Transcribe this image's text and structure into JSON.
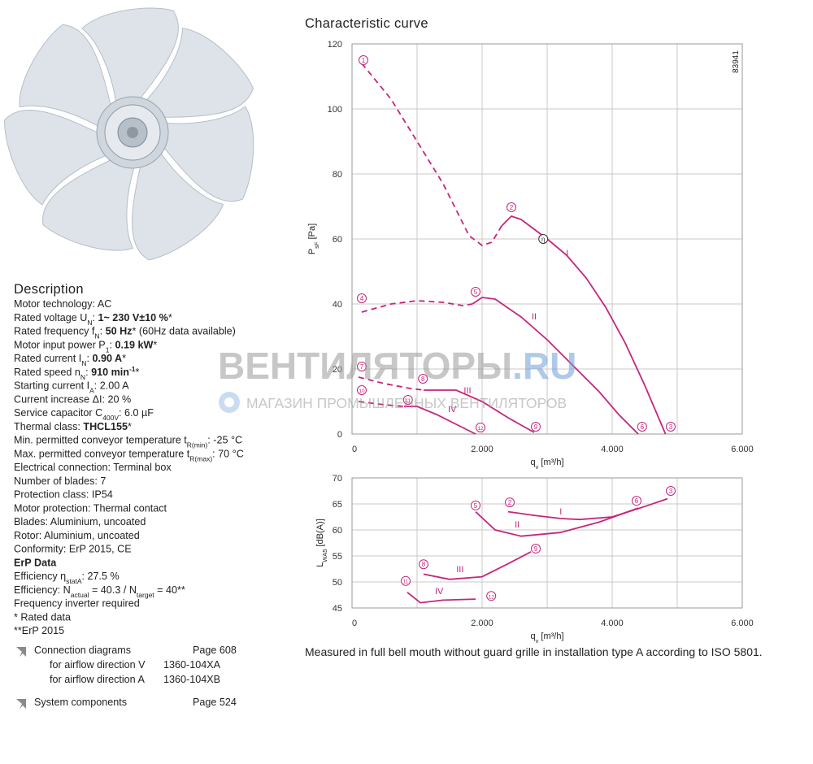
{
  "description": {
    "title": "Description",
    "lines": [
      [
        {
          "t": "Motor technology: AC"
        }
      ],
      [
        {
          "t": "Rated voltage U"
        },
        {
          "sub": "N"
        },
        {
          "t": ": "
        },
        {
          "b": "1~ 230 V±10 %"
        },
        {
          "t": "*"
        }
      ],
      [
        {
          "t": "Rated frequency f"
        },
        {
          "sub": "N"
        },
        {
          "t": ": "
        },
        {
          "b": "50 Hz"
        },
        {
          "t": "* (60Hz data available)"
        }
      ],
      [
        {
          "t": "Motor input power P"
        },
        {
          "sub": "1"
        },
        {
          "t": ": "
        },
        {
          "b": "0.19 kW"
        },
        {
          "t": "*"
        }
      ],
      [
        {
          "t": "Rated current I"
        },
        {
          "sub": "N"
        },
        {
          "t": ": "
        },
        {
          "b": "0.90 A"
        },
        {
          "t": "*"
        }
      ],
      [
        {
          "t": "Rated speed n"
        },
        {
          "sub": "N"
        },
        {
          "t": ": "
        },
        {
          "b": "910 min"
        },
        {
          "sup": "-1"
        },
        {
          "t": "*"
        }
      ],
      [
        {
          "t": "Starting current I"
        },
        {
          "sub": "A"
        },
        {
          "t": ": 2.00 A"
        }
      ],
      [
        {
          "t": "Current increase ΔI: 20 %"
        }
      ],
      [
        {
          "t": "Service capacitor C"
        },
        {
          "sub": "400V"
        },
        {
          "t": ": 6.0 µF"
        }
      ],
      [
        {
          "t": "Thermal class: "
        },
        {
          "b": "THCL155"
        },
        {
          "t": "*"
        }
      ],
      [
        {
          "t": "Min. permitted conveyor temperature t"
        },
        {
          "sub": "R(min)"
        },
        {
          "t": ": -25 °C"
        }
      ],
      [
        {
          "t": "Max. permitted conveyor temperature t"
        },
        {
          "sub": "R(max)"
        },
        {
          "t": ": 70 °C"
        }
      ],
      [
        {
          "t": "Electrical connection: Terminal box"
        }
      ],
      [
        {
          "t": "Number of blades: 7"
        }
      ],
      [
        {
          "t": "Protection class: IP54"
        }
      ],
      [
        {
          "t": "Motor protection: Thermal contact"
        }
      ],
      [
        {
          "t": "Blades: Aluminium, uncoated"
        }
      ],
      [
        {
          "t": "Rotor: Aluminium, uncoated"
        }
      ],
      [
        {
          "t": "Conformity: ErP 2015, CE"
        }
      ],
      [
        {
          "b": "ErP Data"
        }
      ],
      [
        {
          "t": "Efficiency η"
        },
        {
          "sub": "statA"
        },
        {
          "t": ": 27.5 %"
        }
      ],
      [
        {
          "t": "Efficiency: N"
        },
        {
          "sub": "actual"
        },
        {
          "t": " = 40.3 / N"
        },
        {
          "sub": "target"
        },
        {
          "t": " = 40**"
        }
      ],
      [
        {
          "t": "Frequency inverter required"
        }
      ],
      [
        {
          "t": "* Rated data"
        }
      ],
      [
        {
          "t": "**ErP 2015"
        }
      ]
    ]
  },
  "links": [
    {
      "label": "Connection diagrams",
      "page": "Page 608",
      "items": [
        {
          "label": "for airflow direction V",
          "code": "1360-104XA"
        },
        {
          "label": "for airflow direction A",
          "code": "1360-104XB"
        }
      ]
    },
    {
      "label": "System components",
      "page": "Page 524",
      "items": []
    }
  ],
  "heading": "Characteristic curve",
  "watermark": {
    "brand": "ВЕНТИЛЯТОРЫ",
    "domain": ".RU",
    "tagline": "МАГАЗИН ПРОМЫШЛЕННЫХ ВЕНТИЛЯТОРОВ"
  },
  "note": "Measured in full bell mouth without guard grille in installation type A according to ISO 5801.",
  "chart_data": [
    {
      "type": "line",
      "code": "83941",
      "xlabel": {
        "main": "q",
        "sub": "v",
        "rest": " [m³/h]"
      },
      "ylabel": {
        "main": "P",
        "sub": "sF",
        "rest": " [Pa]"
      },
      "xlim": [
        0,
        6000
      ],
      "ylim": [
        0,
        120
      ],
      "xticks": [
        0,
        {
          "value": 2000,
          "label": "2.000"
        },
        {
          "value": 4000,
          "label": "4.000"
        },
        {
          "value": 6000,
          "label": "6.000"
        }
      ],
      "minor_xticks": [
        1000,
        3000,
        5000
      ],
      "yticks": [
        0,
        20,
        40,
        60,
        80,
        100,
        120
      ],
      "grid": true,
      "color": "#c4267c",
      "series": [
        {
          "dashed": true,
          "x": [
            150,
            600,
            1000,
            1400,
            1800,
            2000,
            2150,
            2300
          ],
          "values": [
            114,
            103,
            90,
            77,
            61,
            58,
            59,
            64
          ]
        },
        {
          "dashed": false,
          "x": [
            2300,
            2450,
            2600,
            2800,
            3000,
            3300,
            3600,
            3900,
            4200,
            4500,
            4820
          ],
          "values": [
            64,
            67,
            66,
            63,
            60,
            55,
            48,
            39,
            28,
            15,
            0
          ]
        },
        {
          "dashed": true,
          "x": [
            150,
            600,
            1000,
            1400,
            1700,
            1850
          ],
          "values": [
            37.5,
            40,
            41,
            40.5,
            39.5,
            40
          ]
        },
        {
          "dashed": false,
          "x": [
            1850,
            2000,
            2200,
            2600,
            3000,
            3400,
            3800,
            4100,
            4400
          ],
          "values": [
            40,
            42,
            41.5,
            36,
            29,
            21,
            13,
            6,
            0
          ]
        },
        {
          "dashed": true,
          "x": [
            100,
            500,
            900,
            1100
          ],
          "values": [
            17.5,
            15.5,
            14,
            13.5
          ]
        },
        {
          "dashed": false,
          "x": [
            1100,
            1600,
            2000,
            2400,
            2800
          ],
          "values": [
            13.5,
            13.5,
            10,
            5,
            0.5
          ]
        },
        {
          "dashed": true,
          "x": [
            100,
            500,
            800
          ],
          "values": [
            10,
            9,
            8.5
          ]
        },
        {
          "dashed": false,
          "x": [
            800,
            1000,
            1300,
            1600,
            1900
          ],
          "values": [
            8.5,
            8.5,
            6,
            3,
            0
          ]
        }
      ],
      "annotations": [
        {
          "text": "1",
          "circled": true,
          "x": 175,
          "y": 115
        },
        {
          "text": "2",
          "circled": true,
          "x": 2450,
          "y": 69.75
        },
        {
          "text": "η",
          "circled": true,
          "x": 2940,
          "y": 60,
          "color": "#333333"
        },
        {
          "text": "3",
          "circled": true,
          "x": 4900,
          "y": 2.25
        },
        {
          "text": "4",
          "circled": true,
          "x": 150,
          "y": 41.75
        },
        {
          "text": "5",
          "circled": true,
          "x": 1900,
          "y": 43.75
        },
        {
          "text": "6",
          "circled": true,
          "x": 4460,
          "y": 2.25
        },
        {
          "text": "7",
          "circled": true,
          "x": 150,
          "y": 20.75
        },
        {
          "text": "8",
          "circled": true,
          "x": 1090,
          "y": 17
        },
        {
          "text": "9",
          "circled": true,
          "x": 2825,
          "y": 2.25
        },
        {
          "text": "10",
          "circled": true,
          "x": 150,
          "y": 13.5
        },
        {
          "text": "11",
          "circled": true,
          "x": 860,
          "y": 10.5
        },
        {
          "text": "12",
          "circled": true,
          "x": 1975,
          "y": 2
        },
        {
          "text": "I",
          "circled": false,
          "x": 3310,
          "y": 55.75
        },
        {
          "text": "II",
          "circled": false,
          "x": 2800,
          "y": 36.25
        },
        {
          "text": "III",
          "circled": false,
          "x": 1775,
          "y": 13.5
        },
        {
          "text": "IV",
          "circled": false,
          "x": 1540,
          "y": 7.75
        }
      ]
    },
    {
      "type": "line",
      "xlabel": {
        "main": "q",
        "sub": "v",
        "rest": " [m³/h]"
      },
      "ylabel": {
        "main": "L",
        "sub": "WA5",
        "rest": " [dB(A)]"
      },
      "xlim": [
        0,
        6000
      ],
      "ylim": [
        45,
        70
      ],
      "xticks": [
        0,
        {
          "value": 2000,
          "label": "2.000"
        },
        {
          "value": 4000,
          "label": "4.000"
        },
        {
          "value": 6000,
          "label": "6.000"
        }
      ],
      "minor_xticks": [
        1000,
        3000,
        5000
      ],
      "yticks": [
        45,
        50,
        55,
        60,
        65,
        70
      ],
      "grid": true,
      "color": "#c4267c",
      "series": [
        {
          "dashed": false,
          "x": [
            2400,
            2800,
            3200,
            3500,
            4000,
            4500,
            4850
          ],
          "values": [
            63.5,
            62.8,
            62.2,
            62,
            62.5,
            64.5,
            66
          ]
        },
        {
          "dashed": false,
          "x": [
            1900,
            2200,
            2600,
            3200,
            3800,
            4400
          ],
          "values": [
            63.5,
            60,
            58.8,
            59.5,
            61.5,
            64.2
          ]
        },
        {
          "dashed": false,
          "x": [
            1100,
            1500,
            2000,
            2400,
            2750
          ],
          "values": [
            51.5,
            50.5,
            51,
            53.5,
            55.8
          ]
        },
        {
          "dashed": false,
          "x": [
            850,
            1050,
            1400,
            1900
          ],
          "values": [
            48,
            46,
            46.5,
            46.7
          ]
        }
      ],
      "annotations": [
        {
          "text": "2",
          "circled": true,
          "x": 2425,
          "y": 65.3
        },
        {
          "text": "3",
          "circled": true,
          "x": 4900,
          "y": 67.5
        },
        {
          "text": "5",
          "circled": true,
          "x": 1900,
          "y": 64.7
        },
        {
          "text": "6",
          "circled": true,
          "x": 4375,
          "y": 65.6
        },
        {
          "text": "8",
          "circled": true,
          "x": 1100,
          "y": 53.4
        },
        {
          "text": "9",
          "circled": true,
          "x": 2825,
          "y": 56.4
        },
        {
          "text": "11",
          "circled": true,
          "x": 825,
          "y": 50.2
        },
        {
          "text": "12",
          "circled": true,
          "x": 2140,
          "y": 47.3
        },
        {
          "text": "I",
          "circled": false,
          "x": 3210,
          "y": 63.6
        },
        {
          "text": "II",
          "circled": false,
          "x": 2540,
          "y": 61.1
        },
        {
          "text": "III",
          "circled": false,
          "x": 1660,
          "y": 52.5
        },
        {
          "text": "IV",
          "circled": false,
          "x": 1340,
          "y": 48.3
        }
      ]
    }
  ]
}
